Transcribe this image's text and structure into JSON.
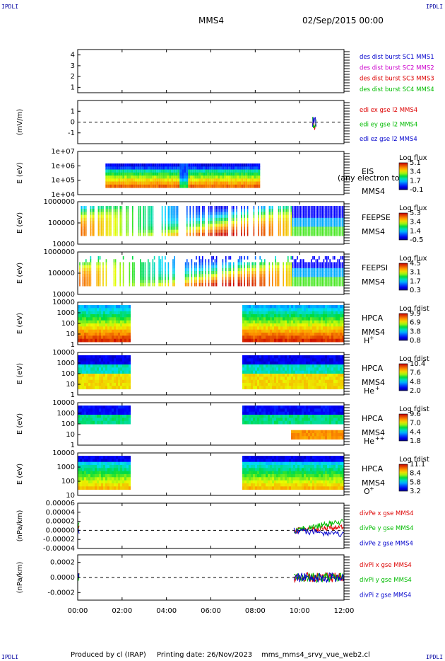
{
  "corner_label": "IPDLI",
  "header": {
    "spacecraft": "MMS4",
    "datetime": "02/Sep/2015 00:00"
  },
  "footer": {
    "produced_by": "Produced by cl (IRAP)",
    "printing_date": "Printing date: 26/Nov/2023",
    "filename": "mms_mms4_srvy_vue_web2.cl"
  },
  "chart_data": {
    "type": "stacked time series",
    "x_axis": {
      "range": [
        "00:00",
        "12:00"
      ],
      "tick_labels": [
        "00:00",
        "02:00",
        "04:00",
        "06:00",
        "08:00",
        "10:00",
        "12:00"
      ]
    },
    "panels": [
      {
        "id": "des",
        "type": "line",
        "ylabel": "",
        "ylim": [
          0.5,
          4.5
        ],
        "yticks": [
          "4",
          "3",
          "2",
          "1"
        ],
        "ytick_values": [
          4,
          3,
          2,
          1
        ],
        "legend": [
          {
            "text": "des dist burst SC1 MMS1",
            "color": "#0000cc"
          },
          {
            "text": "des dist burst SC2 MMS2",
            "color": "#cc00cc"
          },
          {
            "text": "des dist burst SC3 MMS3",
            "color": "#dd0000"
          },
          {
            "text": "des dist burst SC4 MMS4",
            "color": "#00bb00"
          }
        ]
      },
      {
        "id": "edi",
        "type": "line",
        "ylabel": "(mV/m)",
        "ylim": [
          -2,
          2
        ],
        "yticks": [
          "1",
          "0",
          "-1"
        ],
        "ytick_values": [
          1,
          0,
          -1
        ],
        "series_active_range": [
          "10:35",
          "10:45"
        ],
        "legend": [
          {
            "text": "edi ex gse l2 MMS4",
            "color": "#dd0000"
          },
          {
            "text": "edi ey gse l2 MMS4",
            "color": "#00bb00"
          },
          {
            "text": "edi ez gse l2 MMS4",
            "color": "#0000cc"
          }
        ]
      },
      {
        "id": "eis",
        "type": "heatmap",
        "ylabel": "E (eV)",
        "scale": "log",
        "yticks": [
          "1e+07",
          "1e+06",
          "1e+05",
          "1e+04"
        ],
        "data_range": [
          "01:15",
          "08:10"
        ],
        "instrument": [
          "EIS",
          "MMS4"
        ],
        "overlay_text": "(any electron to",
        "colorbar": {
          "title": "Log flux",
          "ticks": [
            "5.1",
            "3.4",
            "1.7",
            "-0.1"
          ]
        }
      },
      {
        "id": "feepse",
        "type": "heatmap",
        "ylabel": "E (eV)",
        "scale": "log",
        "yticks": [
          "1000000",
          "100000",
          "10000"
        ],
        "data_range": [
          "00:00",
          "12:00"
        ],
        "instrument": [
          "FEEPSE",
          "MMS4"
        ],
        "colorbar": {
          "title": "Log flux",
          "ticks": [
            "5.3",
            "3.4",
            "1.4",
            "-0.5"
          ]
        }
      },
      {
        "id": "feepsi",
        "type": "heatmap",
        "ylabel": "E (eV)",
        "scale": "log",
        "yticks": [
          "1000000",
          "100000",
          "10000"
        ],
        "data_range": [
          "00:00",
          "12:00"
        ],
        "instrument": [
          "FEEPSI",
          "MMS4"
        ],
        "colorbar": {
          "title": "Log flux",
          "ticks": [
            "4.5",
            "3.1",
            "1.7",
            "0.3"
          ]
        }
      },
      {
        "id": "hpca_h",
        "type": "heatmap",
        "ylabel": "E (eV)",
        "scale": "log",
        "yticks": [
          "10000",
          "1000",
          "100",
          "10",
          "1"
        ],
        "data_ranges": [
          [
            "00:00",
            "02:20"
          ],
          [
            "07:25",
            "12:00"
          ]
        ],
        "instrument": [
          "HPCA",
          "MMS4"
        ],
        "species": "H",
        "charge": "+",
        "colorbar": {
          "title": "Log fdist",
          "ticks": [
            "9.9",
            "6.9",
            "3.8",
            "0.8"
          ]
        }
      },
      {
        "id": "hpca_he",
        "type": "heatmap",
        "ylabel": "E (eV)",
        "scale": "log",
        "yticks": [
          "10000",
          "1000",
          "100",
          "10",
          "1"
        ],
        "data_ranges": [
          [
            "00:00",
            "02:20"
          ],
          [
            "07:25",
            "12:00"
          ]
        ],
        "instrument": [
          "HPCA",
          "MMS4"
        ],
        "species": "He",
        "charge": "+",
        "colorbar": {
          "title": "Log fdist",
          "ticks": [
            "10.4",
            "7.6",
            "4.8",
            "2.0"
          ]
        }
      },
      {
        "id": "hpca_he2",
        "type": "heatmap",
        "ylabel": "E (eV)",
        "scale": "log",
        "yticks": [
          "10000",
          "1000",
          "100",
          "10",
          "1"
        ],
        "data_ranges": [
          [
            "00:00",
            "02:20"
          ],
          [
            "07:25",
            "12:00"
          ]
        ],
        "instrument": [
          "HPCA",
          "MMS4"
        ],
        "species": "He",
        "charge": "++",
        "colorbar": {
          "title": "Log fdist",
          "ticks": [
            "9.6",
            "7.0",
            "4.4",
            "1.8"
          ]
        }
      },
      {
        "id": "hpca_o",
        "type": "heatmap",
        "ylabel": "E (eV)",
        "scale": "log",
        "yticks": [
          "10000",
          "1000",
          "100",
          "10"
        ],
        "data_ranges": [
          [
            "00:00",
            "02:20"
          ],
          [
            "07:25",
            "12:00"
          ]
        ],
        "instrument": [
          "HPCA",
          "MMS4"
        ],
        "species": "O",
        "charge": "+",
        "colorbar": {
          "title": "Log fdist",
          "ticks": [
            "11.1",
            "8.4",
            "5.8",
            "3.2"
          ]
        }
      },
      {
        "id": "divpe",
        "type": "line",
        "ylabel": "(nPa/km)",
        "ylim": [
          -4e-05,
          6e-05
        ],
        "yticks": [
          "0.00006",
          "0.00004",
          "0.00002",
          "0.00000",
          "-0.00002",
          "-0.00004"
        ],
        "ytick_values": [
          6e-05,
          4e-05,
          2e-05,
          0,
          -2e-05,
          -4e-05
        ],
        "series_active_ranges": [
          [
            "00:00",
            "00:05"
          ],
          [
            "09:45",
            "12:00"
          ]
        ],
        "legend": [
          {
            "text": "divPe x gse MMS4",
            "color": "#dd0000"
          },
          {
            "text": "divPe y gse MMS4",
            "color": "#00bb00"
          },
          {
            "text": "divPe z gse MMS4",
            "color": "#0000cc"
          }
        ]
      },
      {
        "id": "divpi",
        "type": "line",
        "ylabel": "(nPa/km)",
        "ylim": [
          -0.0003,
          0.0003
        ],
        "yticks": [
          "0.0002",
          "0.0000",
          "-0.0002"
        ],
        "ytick_values": [
          0.0002,
          0,
          -0.0002
        ],
        "series_active_ranges": [
          [
            "00:00",
            "00:05"
          ],
          [
            "09:45",
            "12:00"
          ]
        ],
        "legend": [
          {
            "text": "divPi x gse MMS4",
            "color": "#dd0000"
          },
          {
            "text": "divPi y gse MMS4",
            "color": "#00bb00"
          },
          {
            "text": "divPi z gse MMS4",
            "color": "#0000cc"
          }
        ]
      }
    ]
  }
}
